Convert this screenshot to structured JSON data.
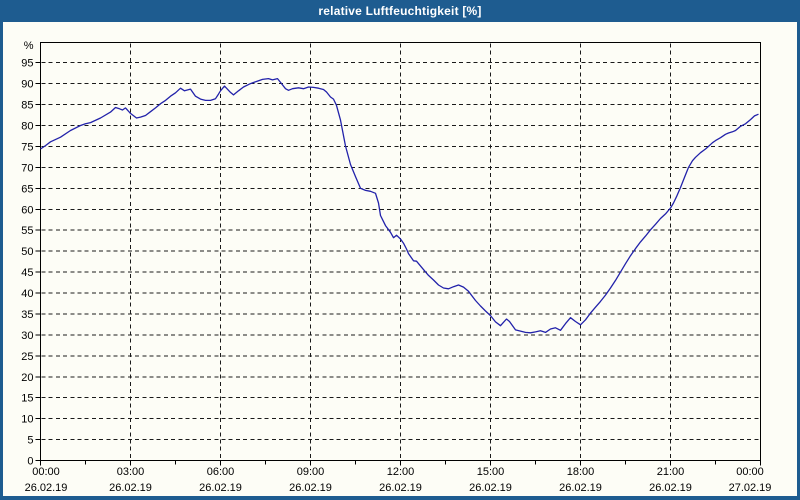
{
  "window": {
    "title": "relative Luftfeuchtigkeit [%]"
  },
  "colors": {
    "chrome_blue": "#1e5c90",
    "title_text": "#ffffff",
    "plot_background": "#fdfdf6",
    "series_line": "#2222aa",
    "grid_line": "#1a1a1a",
    "axis_text": "#000000"
  },
  "chart_data": {
    "type": "line",
    "title": "relative Luftfeuchtigkeit [%]",
    "xlabel": "",
    "ylabel": "%",
    "ylim": [
      0,
      100
    ],
    "grid": "dashed",
    "legend_position": "none",
    "y_axis": {
      "unit": "%",
      "tick_values": [
        0,
        5,
        10,
        15,
        20,
        25,
        30,
        35,
        40,
        45,
        50,
        55,
        60,
        65,
        70,
        75,
        80,
        85,
        90,
        95
      ],
      "gridline_min": 5
    },
    "x_axis": {
      "total_min": 1440,
      "minor_step_min": 90,
      "ticks": [
        {
          "t": 0,
          "time": "00:00",
          "date": "26.02.19"
        },
        {
          "t": 180,
          "time": "03:00",
          "date": "26.02.19"
        },
        {
          "t": 360,
          "time": "06:00",
          "date": "26.02.19"
        },
        {
          "t": 540,
          "time": "09:00",
          "date": "26.02.19"
        },
        {
          "t": 720,
          "time": "12:00",
          "date": "26.02.19"
        },
        {
          "t": 900,
          "time": "15:00",
          "date": "26.02.19"
        },
        {
          "t": 1080,
          "time": "18:00",
          "date": "26.02.19"
        },
        {
          "t": 1260,
          "time": "21:00",
          "date": "26.02.19"
        },
        {
          "t": 1440,
          "time": "00:00",
          "date": "27.02.19"
        }
      ]
    },
    "series": [
      {
        "name": "relative Luftfeuchtigkeit",
        "points": [
          [
            0,
            74.4
          ],
          [
            10,
            75.2
          ],
          [
            20,
            76.1
          ],
          [
            40,
            77.2
          ],
          [
            60,
            78.8
          ],
          [
            80,
            80.0
          ],
          [
            90,
            80.4
          ],
          [
            100,
            80.7
          ],
          [
            120,
            81.8
          ],
          [
            140,
            83.2
          ],
          [
            150,
            84.3
          ],
          [
            158,
            84.0
          ],
          [
            164,
            83.7
          ],
          [
            170,
            84.2
          ],
          [
            180,
            82.9
          ],
          [
            192,
            81.8
          ],
          [
            200,
            82.0
          ],
          [
            210,
            82.4
          ],
          [
            220,
            83.3
          ],
          [
            230,
            84.2
          ],
          [
            240,
            85.2
          ],
          [
            250,
            86.0
          ],
          [
            260,
            87.0
          ],
          [
            270,
            87.8
          ],
          [
            280,
            88.9
          ],
          [
            288,
            88.3
          ],
          [
            300,
            88.7
          ],
          [
            310,
            87.0
          ],
          [
            320,
            86.3
          ],
          [
            330,
            86.0
          ],
          [
            340,
            86.0
          ],
          [
            350,
            86.4
          ],
          [
            356,
            87.5
          ],
          [
            360,
            88.3
          ],
          [
            368,
            89.4
          ],
          [
            380,
            87.9
          ],
          [
            386,
            87.3
          ],
          [
            396,
            88.3
          ],
          [
            406,
            89.2
          ],
          [
            420,
            90.0
          ],
          [
            434,
            90.6
          ],
          [
            444,
            91.0
          ],
          [
            456,
            91.2
          ],
          [
            464,
            90.9
          ],
          [
            474,
            91.2
          ],
          [
            482,
            90.0
          ],
          [
            490,
            88.8
          ],
          [
            496,
            88.4
          ],
          [
            504,
            88.8
          ],
          [
            516,
            89.0
          ],
          [
            526,
            88.8
          ],
          [
            536,
            89.2
          ],
          [
            546,
            89.1
          ],
          [
            556,
            88.9
          ],
          [
            566,
            88.6
          ],
          [
            572,
            88.0
          ],
          [
            580,
            86.8
          ],
          [
            586,
            86.3
          ],
          [
            592,
            84.8
          ],
          [
            600,
            81.3
          ],
          [
            610,
            75.1
          ],
          [
            620,
            70.7
          ],
          [
            630,
            67.8
          ],
          [
            640,
            65.0
          ],
          [
            650,
            64.5
          ],
          [
            660,
            64.3
          ],
          [
            670,
            63.8
          ],
          [
            676,
            61.5
          ],
          [
            680,
            58.5
          ],
          [
            690,
            56.1
          ],
          [
            700,
            54.5
          ],
          [
            706,
            53.2
          ],
          [
            712,
            53.8
          ],
          [
            720,
            52.9
          ],
          [
            726,
            51.9
          ],
          [
            732,
            50.5
          ],
          [
            736,
            49.4
          ],
          [
            746,
            47.7
          ],
          [
            752,
            47.6
          ],
          [
            766,
            45.6
          ],
          [
            776,
            44.2
          ],
          [
            786,
            43.1
          ],
          [
            796,
            41.9
          ],
          [
            806,
            41.2
          ],
          [
            816,
            41.0
          ],
          [
            826,
            41.5
          ],
          [
            836,
            41.9
          ],
          [
            846,
            41.4
          ],
          [
            856,
            40.4
          ],
          [
            870,
            38.2
          ],
          [
            880,
            36.9
          ],
          [
            890,
            35.7
          ],
          [
            900,
            34.6
          ],
          [
            910,
            33.1
          ],
          [
            920,
            32.2
          ],
          [
            926,
            33.0
          ],
          [
            932,
            33.8
          ],
          [
            938,
            33.2
          ],
          [
            950,
            31.2
          ],
          [
            960,
            30.9
          ],
          [
            970,
            30.6
          ],
          [
            980,
            30.5
          ],
          [
            990,
            30.7
          ],
          [
            1000,
            31.0
          ],
          [
            1010,
            30.6
          ],
          [
            1020,
            31.4
          ],
          [
            1030,
            31.7
          ],
          [
            1040,
            31.1
          ],
          [
            1050,
            32.7
          ],
          [
            1060,
            34.1
          ],
          [
            1070,
            33.2
          ],
          [
            1080,
            32.4
          ],
          [
            1090,
            33.6
          ],
          [
            1100,
            35.2
          ],
          [
            1110,
            36.6
          ],
          [
            1120,
            38.0
          ],
          [
            1130,
            39.5
          ],
          [
            1140,
            41.2
          ],
          [
            1150,
            43.0
          ],
          [
            1160,
            45.0
          ],
          [
            1170,
            47.0
          ],
          [
            1180,
            48.9
          ],
          [
            1190,
            50.6
          ],
          [
            1200,
            52.2
          ],
          [
            1210,
            53.6
          ],
          [
            1220,
            55.1
          ],
          [
            1230,
            56.4
          ],
          [
            1240,
            57.8
          ],
          [
            1250,
            58.9
          ],
          [
            1260,
            60.3
          ],
          [
            1266,
            61.5
          ],
          [
            1272,
            63.0
          ],
          [
            1280,
            65.2
          ],
          [
            1288,
            67.6
          ],
          [
            1296,
            70.0
          ],
          [
            1304,
            71.6
          ],
          [
            1310,
            72.4
          ],
          [
            1320,
            73.5
          ],
          [
            1330,
            74.4
          ],
          [
            1336,
            75.0
          ],
          [
            1344,
            75.9
          ],
          [
            1350,
            76.4
          ],
          [
            1360,
            77.1
          ],
          [
            1370,
            77.9
          ],
          [
            1376,
            78.2
          ],
          [
            1384,
            78.5
          ],
          [
            1390,
            78.8
          ],
          [
            1396,
            79.4
          ],
          [
            1400,
            79.8
          ],
          [
            1410,
            80.4
          ],
          [
            1420,
            81.4
          ],
          [
            1428,
            82.3
          ],
          [
            1436,
            82.7
          ]
        ]
      }
    ]
  }
}
